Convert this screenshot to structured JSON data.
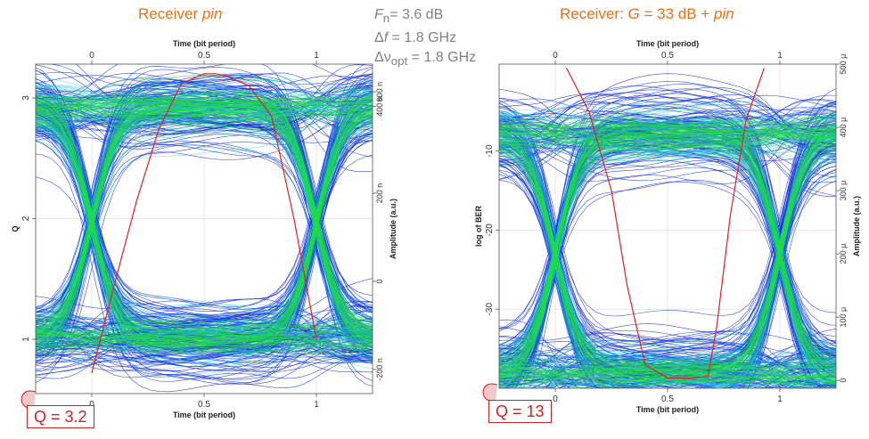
{
  "params": {
    "noise_figure": {
      "symbol": "F",
      "sub": "n",
      "value": "= 3.6 dB"
    },
    "electrical_bw": {
      "symbol": "Δ",
      "var": "f",
      "value": " = 1.8 GHz"
    },
    "optical_bw": {
      "symbol": "Δν",
      "sub": "opt",
      "value": " = 1.8 GHz"
    }
  },
  "colors": {
    "title": "#e8701a",
    "eye_dense": "#22e03a",
    "eye_mid": "#18c8e0",
    "eye_sparse": "#1530d8",
    "q_curve": "#e02020",
    "callout": "#cc2222"
  },
  "chart_data": [
    {
      "type": "line",
      "title_parts": [
        "Receiver ",
        "pin"
      ],
      "xlabel": "Time (bit period)",
      "xlabel_top": "Time (bit period)",
      "ylabel": "Q",
      "ylabel_right": "Amplitude (a.u.)",
      "xlim": [
        -0.25,
        1.25
      ],
      "ylim": [
        0.55,
        3.28
      ],
      "x_ticks": [
        "0",
        "0.5",
        "1"
      ],
      "y_ticks": [
        "1",
        "2",
        "3"
      ],
      "right_ticks": [
        "-200 n",
        "0",
        "200 n",
        "400 n",
        "600 n"
      ],
      "right_tick_positions": [
        0.75,
        1.48,
        2.21,
        2.93,
        3.05
      ],
      "grid": true,
      "q_curve": {
        "name": "Q",
        "x": [
          0.0,
          0.1,
          0.2,
          0.3,
          0.4,
          0.5,
          0.55,
          0.6,
          0.7,
          0.8,
          0.9,
          1.0
        ],
        "y": [
          0.72,
          1.45,
          2.15,
          2.75,
          3.12,
          3.2,
          3.2,
          3.18,
          3.1,
          2.85,
          2.0,
          1.0
        ]
      },
      "eye": {
        "one_level": 2.93,
        "zero_level": 1.0,
        "cross_x": [
          0.0,
          1.0
        ],
        "center_y": 1.96,
        "noise": 0.16
      },
      "q_callout": "Q = 3.2"
    },
    {
      "type": "line",
      "title_parts": [
        "Receiver: ",
        "G",
        " = 33 dB + ",
        "pin"
      ],
      "xlabel": "Time (bit period)",
      "xlabel_top": "Time (bit period)",
      "ylabel": "log of BER",
      "ylabel_right": "Amplitude (a.u.)",
      "xlim": [
        -0.25,
        1.25
      ],
      "ylim": [
        -40,
        1
      ],
      "x_ticks": [
        "0",
        "0.5",
        "1"
      ],
      "y_ticks": [
        "-10",
        "-20",
        "-30"
      ],
      "right_ticks": [
        "0",
        "100 μ",
        "200 μ",
        "300 μ",
        "400 μ",
        "500 μ"
      ],
      "right_tick_positions": [
        -39.0,
        -31.0,
        -23.0,
        -15.0,
        -7.0,
        1.0
      ],
      "grid": true,
      "q_curve": {
        "name": "log of BER",
        "x": [
          0.05,
          0.15,
          0.25,
          0.32,
          0.4,
          0.5,
          0.6,
          0.68,
          0.72,
          0.78,
          0.85,
          0.93
        ],
        "y": [
          0.5,
          -5,
          -15,
          -27,
          -37,
          -38.7,
          -38.7,
          -38.5,
          -32,
          -18,
          -6,
          0.5
        ]
      },
      "eye": {
        "one_level": -7.8,
        "zero_level": -38.2,
        "cross_x": [
          0.0,
          1.0
        ],
        "center_y": -23.0,
        "noise": 2.5
      },
      "q_callout": "Q = 13"
    }
  ]
}
